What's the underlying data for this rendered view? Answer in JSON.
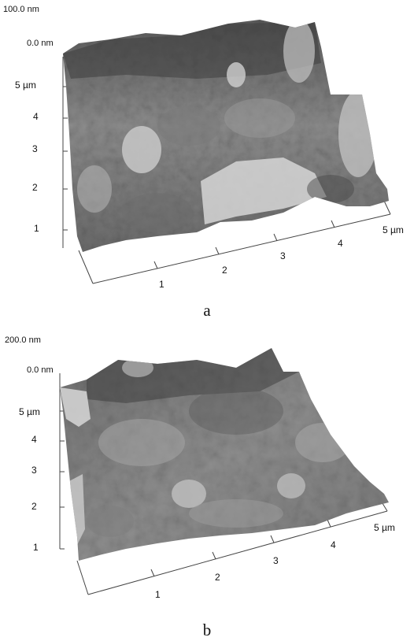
{
  "panels": [
    {
      "caption": "a",
      "z_max_label": "100.0 nm",
      "z_min_label": "0.0 nm",
      "y_ticks": [
        "5 µm",
        "4",
        "3",
        "2",
        "1"
      ],
      "x_ticks": [
        "1",
        "2",
        "3",
        "4",
        "5 µm"
      ]
    },
    {
      "caption": "b",
      "z_max_label": "200.0 nm",
      "z_min_label": "0.0 nm",
      "y_ticks": [
        "5 µm",
        "4",
        "3",
        "2",
        "1"
      ],
      "x_ticks": [
        "1",
        "2",
        "3",
        "4",
        "5 µm"
      ]
    }
  ]
}
